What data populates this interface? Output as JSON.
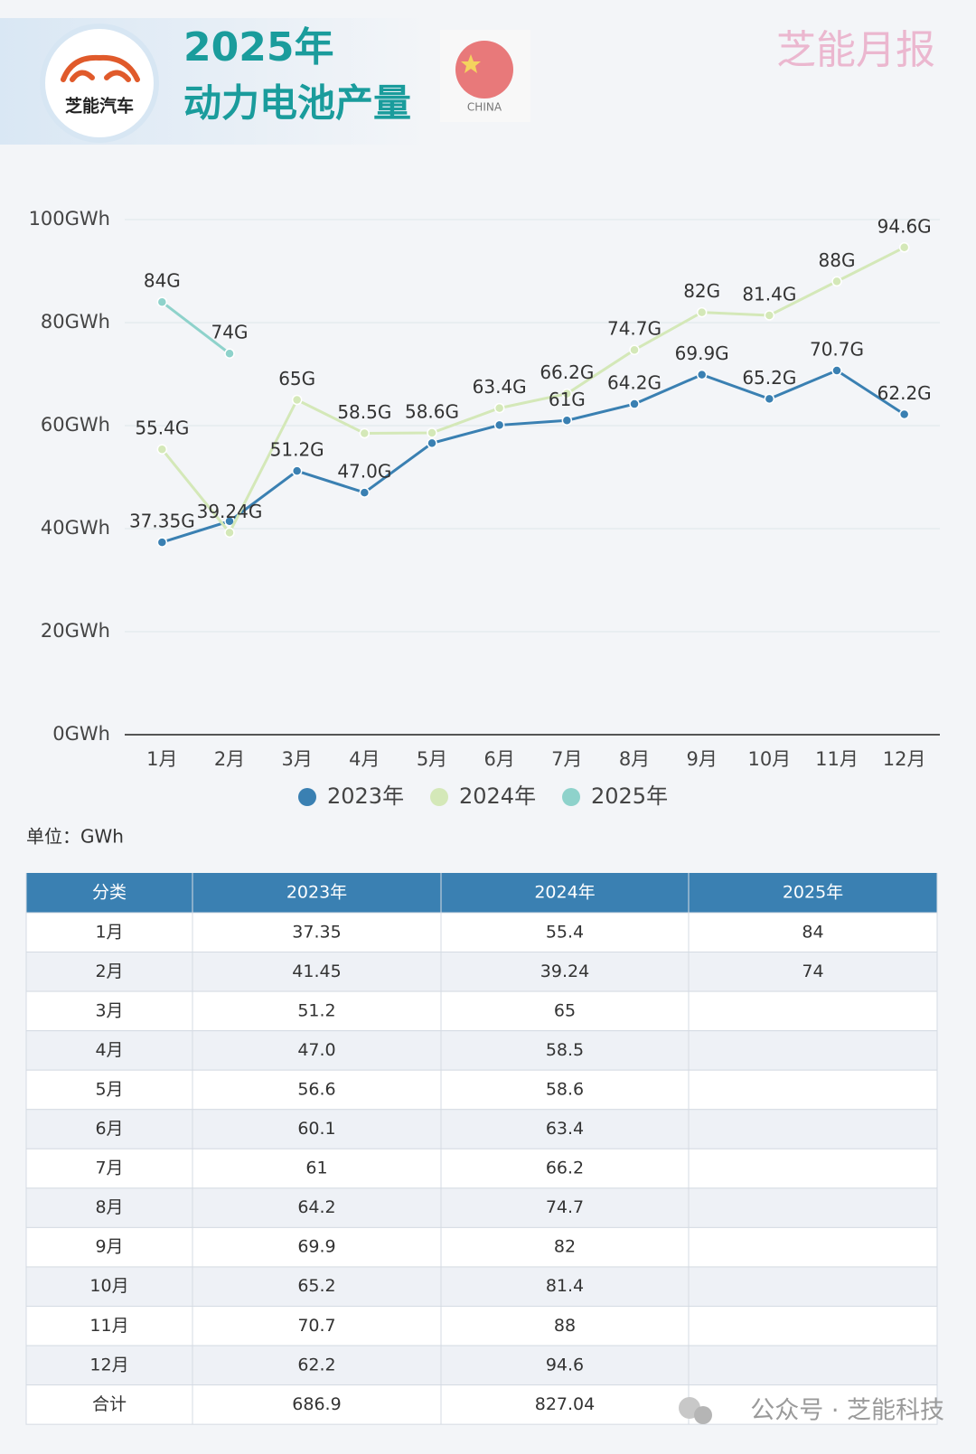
{
  "header": {
    "logo_text": "芝能汽车",
    "title_line1": "2025年",
    "title_line2": "动力电池产量",
    "flag_caption": "CHINA",
    "brand": "芝能月报"
  },
  "chart_data": {
    "type": "line",
    "categories": [
      "1月",
      "2月",
      "3月",
      "4月",
      "5月",
      "6月",
      "7月",
      "8月",
      "9月",
      "10月",
      "11月",
      "12月"
    ],
    "series": [
      {
        "name": "2023年",
        "color": "#3a80b2",
        "values": [
          37.35,
          41.45,
          51.2,
          47.0,
          56.6,
          60.1,
          61,
          64.2,
          69.9,
          65.2,
          70.7,
          62.2
        ],
        "value_labels": [
          "37.35G",
          null,
          "51.2G",
          "47.0G",
          null,
          null,
          "61G",
          "64.2G",
          "69.9G",
          "65.2G",
          "70.7G",
          "62.2G"
        ]
      },
      {
        "name": "2024年",
        "color": "#d4e8b8",
        "values": [
          55.4,
          39.24,
          65,
          58.5,
          58.6,
          63.4,
          66.2,
          74.7,
          82,
          81.4,
          88,
          94.6
        ],
        "value_labels": [
          "55.4G",
          "39.24G",
          "65G",
          "58.5G",
          "58.6G",
          "63.4G",
          "66.2G",
          "74.7G",
          "82G",
          "81.4G",
          "88G",
          "94.6G"
        ]
      },
      {
        "name": "2025年",
        "color": "#8ed2cb",
        "values": [
          84,
          74,
          null,
          null,
          null,
          null,
          null,
          null,
          null,
          null,
          null,
          null
        ],
        "value_labels": [
          "84G",
          "74G",
          null,
          null,
          null,
          null,
          null,
          null,
          null,
          null,
          null,
          null
        ]
      }
    ],
    "ylim": [
      0,
      100
    ],
    "yticks": [
      {
        "value": 0,
        "label": "0GWh"
      },
      {
        "value": 20,
        "label": "20GWh"
      },
      {
        "value": 40,
        "label": "40GWh"
      },
      {
        "value": 60,
        "label": "60GWh"
      },
      {
        "value": 80,
        "label": "80GWh"
      },
      {
        "value": 100,
        "label": "100GWh"
      }
    ],
    "grid": true,
    "legend": "bottom"
  },
  "unit_note": "单位：GWh",
  "table": {
    "header": [
      "分类",
      "2023年",
      "2024年",
      "2025年"
    ],
    "rows": [
      [
        "1月",
        "37.35",
        "55.4",
        "84"
      ],
      [
        "2月",
        "41.45",
        "39.24",
        "74"
      ],
      [
        "3月",
        "51.2",
        "65",
        null
      ],
      [
        "4月",
        "47.0",
        "58.5",
        null
      ],
      [
        "5月",
        "56.6",
        "58.6",
        null
      ],
      [
        "6月",
        "60.1",
        "63.4",
        null
      ],
      [
        "7月",
        "61",
        "66.2",
        null
      ],
      [
        "8月",
        "64.2",
        "74.7",
        null
      ],
      [
        "9月",
        "69.9",
        "82",
        null
      ],
      [
        "10月",
        "65.2",
        "81.4",
        null
      ],
      [
        "11月",
        "70.7",
        "88",
        null
      ],
      [
        "12月",
        "62.2",
        "94.6",
        null
      ],
      [
        "合计",
        "686.9",
        "827.04",
        null
      ]
    ]
  },
  "watermark": "公众号 · 芝能科技"
}
